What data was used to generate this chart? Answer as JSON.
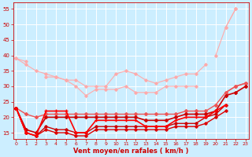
{
  "x": [
    0,
    1,
    2,
    3,
    4,
    5,
    6,
    7,
    8,
    9,
    10,
    11,
    12,
    13,
    14,
    15,
    16,
    17,
    18,
    19,
    20,
    21,
    22,
    23
  ],
  "lines": [
    {
      "label": "light_pink_triangle_upper",
      "y": [
        39,
        38,
        null,
        null,
        null,
        null,
        null,
        null,
        null,
        null,
        null,
        null,
        null,
        null,
        null,
        null,
        null,
        null,
        null,
        null,
        null,
        49,
        55,
        null
      ],
      "color": "#ffaaaa",
      "lw": 0.8,
      "marker": "D",
      "ms": 1.8,
      "zorder": 2
    },
    {
      "label": "light_pink_line1",
      "y": [
        39,
        37,
        35,
        34,
        33,
        32,
        32,
        30,
        30,
        30,
        34,
        35,
        34,
        32,
        31,
        32,
        33,
        34,
        34,
        37,
        null,
        null,
        null,
        null
      ],
      "color": "#ffaaaa",
      "lw": 0.8,
      "marker": "D",
      "ms": 1.8,
      "zorder": 2
    },
    {
      "label": "light_pink_line2",
      "y": [
        null,
        null,
        null,
        33,
        33,
        32,
        30,
        27,
        29,
        29,
        29,
        30,
        28,
        28,
        28,
        30,
        30,
        30,
        30,
        null,
        null,
        null,
        null,
        null
      ],
      "color": "#ffaaaa",
      "lw": 0.8,
      "marker": "D",
      "ms": 1.8,
      "zorder": 2
    },
    {
      "label": "light_pink_line3_rising",
      "y": [
        null,
        null,
        null,
        null,
        null,
        null,
        null,
        null,
        null,
        null,
        null,
        null,
        null,
        null,
        null,
        null,
        null,
        null,
        null,
        null,
        40,
        49,
        55,
        null
      ],
      "color": "#ffaaaa",
      "lw": 0.8,
      "marker": "D",
      "ms": 1.8,
      "zorder": 2
    },
    {
      "label": "medium_red_upper_rising",
      "y": [
        null,
        null,
        null,
        null,
        null,
        null,
        null,
        null,
        null,
        null,
        null,
        null,
        null,
        null,
        null,
        null,
        null,
        null,
        null,
        null,
        null,
        28,
        30,
        31
      ],
      "color": "#ee6666",
      "lw": 1.0,
      "marker": "D",
      "ms": 2.0,
      "zorder": 3
    },
    {
      "label": "medium_red_gradual",
      "y": [
        23,
        21,
        20,
        21,
        21,
        21,
        21,
        21,
        21,
        21,
        21,
        21,
        21,
        21,
        21,
        21,
        21,
        22,
        22,
        22,
        24,
        28,
        30,
        31
      ],
      "color": "#ee5555",
      "lw": 1.0,
      "marker": "D",
      "ms": 2.0,
      "zorder": 3
    },
    {
      "label": "dark_red_main_gradual",
      "y": [
        23,
        16,
        15,
        20,
        20,
        20,
        20,
        20,
        20,
        20,
        20,
        20,
        20,
        19,
        19,
        19,
        20,
        21,
        21,
        21,
        22,
        27,
        28,
        30
      ],
      "color": "#cc0000",
      "lw": 1.2,
      "marker": "D",
      "ms": 2.0,
      "zorder": 4
    },
    {
      "label": "bright_red_cross_markers",
      "y": [
        23,
        15,
        14,
        22,
        22,
        22,
        15,
        15,
        19,
        19,
        19,
        19,
        19,
        17,
        17,
        17,
        19,
        20,
        20,
        20,
        22,
        24,
        null,
        null
      ],
      "color": "#ff0000",
      "lw": 1.2,
      "marker": "+",
      "ms": 3.5,
      "zorder": 5
    },
    {
      "label": "dark_red_low_zigzag",
      "y": [
        23,
        15,
        14,
        17,
        16,
        16,
        15,
        15,
        17,
        17,
        17,
        17,
        17,
        17,
        17,
        17,
        18,
        18,
        18,
        20,
        21,
        24,
        null,
        null
      ],
      "color": "#cc0000",
      "lw": 1.0,
      "marker": "D",
      "ms": 1.8,
      "zorder": 4
    },
    {
      "label": "red_lowest",
      "y": [
        23,
        15,
        14,
        16,
        15,
        15,
        14,
        14,
        16,
        16,
        16,
        16,
        16,
        16,
        16,
        16,
        17,
        17,
        17,
        18,
        20,
        22,
        null,
        null
      ],
      "color": "#dd0000",
      "lw": 1.0,
      "marker": "D",
      "ms": 1.8,
      "zorder": 4
    }
  ],
  "bg_color": "#cceeff",
  "grid_color": "#aadddd",
  "tick_color": "#cc0000",
  "label_color": "#cc0000",
  "xlabel": "Vent moyen/en rafales ( km/h )",
  "ylim": [
    13,
    57
  ],
  "xlim": [
    -0.3,
    23.3
  ],
  "yticks": [
    15,
    20,
    25,
    30,
    35,
    40,
    45,
    50,
    55
  ],
  "xticks": [
    0,
    1,
    2,
    3,
    4,
    5,
    6,
    7,
    8,
    9,
    10,
    11,
    12,
    13,
    14,
    15,
    16,
    17,
    18,
    19,
    20,
    21,
    22,
    23
  ]
}
